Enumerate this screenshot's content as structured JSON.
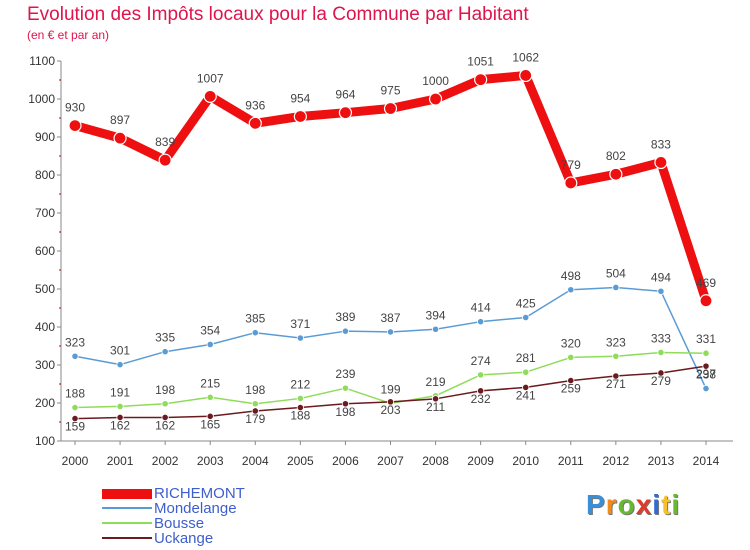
{
  "header": {
    "title": "Evolution des Impôts locaux pour la Commune par Habitant",
    "subtitle": "(en € et par an)"
  },
  "logo": {
    "text": "Proxiti",
    "letters": [
      "P",
      "r",
      "o",
      "x",
      "i",
      "t",
      "i"
    ],
    "colors": [
      "#3a8fd8",
      "#f28a1c",
      "#67b832",
      "#e03a2a",
      "#2f6bd0",
      "#f5c02a",
      "#67b832"
    ]
  },
  "colors": {
    "title": "#e0144c",
    "axis": "#333333",
    "grid": "#e0e0e0",
    "legend_text": "#3d5ecf"
  },
  "chart_data": {
    "type": "line",
    "title": "Evolution des Impôts locaux pour la Commune par Habitant",
    "subtitle": "(en € et par an)",
    "xlabel": "",
    "ylabel": "",
    "x": [
      "2000",
      "2001",
      "2002",
      "2003",
      "2004",
      "2005",
      "2006",
      "2007",
      "2008",
      "2009",
      "2010",
      "2011",
      "2012",
      "2013",
      "2014"
    ],
    "ylim": [
      100,
      1100
    ],
    "yticks": [
      100,
      200,
      300,
      400,
      500,
      600,
      700,
      800,
      900,
      1000,
      1100
    ],
    "grid": false,
    "legend_position": "bottom-left",
    "series": [
      {
        "name": "RICHEMONT",
        "color": "#ee0f10",
        "values": [
          930,
          897,
          839,
          1007,
          936,
          954,
          964,
          975,
          1000,
          1051,
          1062,
          779,
          802,
          833,
          469
        ]
      },
      {
        "name": "Mondelange",
        "color": "#5b9bd5",
        "values": [
          323,
          301,
          335,
          354,
          385,
          371,
          389,
          387,
          394,
          414,
          425,
          498,
          504,
          494,
          238
        ]
      },
      {
        "name": "Bousse",
        "color": "#8fdc5a",
        "values": [
          188,
          191,
          198,
          215,
          198,
          212,
          239,
          199,
          219,
          274,
          281,
          320,
          323,
          333,
          331
        ]
      },
      {
        "name": "Uckange",
        "color": "#6b1a1f",
        "values": [
          159,
          162,
          162,
          165,
          179,
          188,
          198,
          203,
          211,
          232,
          241,
          259,
          271,
          279,
          297
        ]
      }
    ]
  }
}
